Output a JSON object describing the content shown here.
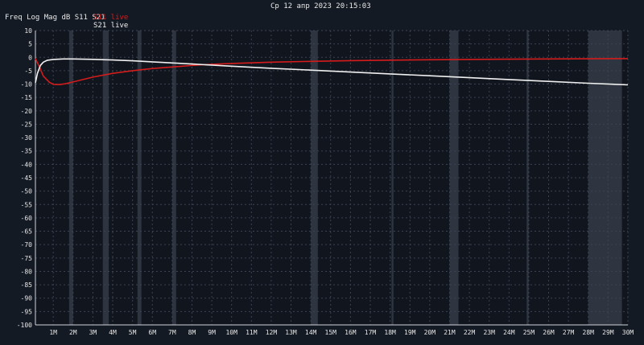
{
  "header": {
    "timestamp": "Ср 12 апр 2023 20:15:03",
    "trace_info": "Freq Log Mag dB S11 S21",
    "legend_s11": "S11 live",
    "legend_s21": "S21 live"
  },
  "colors": {
    "background": "#141a24",
    "plot_background": "#11151d",
    "grid": "#3b4252",
    "band": "#2f3540",
    "s11": "#d41c1c",
    "s21": "#f0f0f0"
  },
  "chart_data": {
    "type": "line",
    "title": "Freq Log Mag dB S11 S21",
    "xlabel": "",
    "ylabel": "",
    "xlim": [
      0.1,
      30
    ],
    "ylim": [
      -100,
      10
    ],
    "x_tick_values": [
      1,
      2,
      3,
      4,
      5,
      6,
      7,
      8,
      9,
      10,
      11,
      12,
      13,
      14,
      15,
      16,
      17,
      18,
      19,
      20,
      21,
      22,
      23,
      24,
      25,
      26,
      27,
      28,
      29,
      30
    ],
    "x_tick_labels": [
      "1M",
      "2M",
      "3M",
      "4M",
      "5M",
      "6M",
      "7M",
      "8M",
      "9M",
      "10M",
      "11M",
      "12M",
      "13M",
      "14M",
      "15M",
      "16M",
      "17M",
      "18M",
      "19M",
      "20M",
      "21M",
      "22M",
      "23M",
      "24M",
      "25M",
      "26M",
      "27M",
      "28M",
      "29M",
      "30M"
    ],
    "y_tick_values": [
      10,
      5,
      0,
      -5,
      -10,
      -15,
      -20,
      -25,
      -30,
      -35,
      -40,
      -45,
      -50,
      -55,
      -60,
      -65,
      -70,
      -75,
      -80,
      -85,
      -90,
      -95,
      -100
    ],
    "y_tick_labels": [
      "10",
      "5",
      "0",
      "-5",
      "-10",
      "-15",
      "-20",
      "-25",
      "-30",
      "-35",
      "-40",
      "-45",
      "-50",
      "-55",
      "-60",
      "-65",
      "-70",
      "-75",
      "-80",
      "-85",
      "-90",
      "-95",
      "-100"
    ],
    "grid": true,
    "shaded_bands_mhz": [
      [
        1.8,
        2.0
      ],
      [
        3.5,
        3.8
      ],
      [
        5.25,
        5.45
      ],
      [
        7.0,
        7.2
      ],
      [
        14.0,
        14.35
      ],
      [
        18.07,
        18.17
      ],
      [
        21.0,
        21.45
      ],
      [
        24.89,
        24.99
      ],
      [
        28.0,
        29.7
      ]
    ],
    "series": [
      {
        "name": "S11 live",
        "color": "#d41c1c",
        "x": [
          0.1,
          0.3,
          0.5,
          0.8,
          1.0,
          1.3,
          1.6,
          2.0,
          2.5,
          3.0,
          4.0,
          5.0,
          6.0,
          7.0,
          8.0,
          9.0,
          10.0,
          12.0,
          14.0,
          16.0,
          18.0,
          20.0,
          22.0,
          24.0,
          26.0,
          28.0,
          30.0
        ],
        "y": [
          -0.5,
          -3.5,
          -7.0,
          -9.3,
          -10.1,
          -10.2,
          -9.9,
          -9.2,
          -8.3,
          -7.4,
          -6.0,
          -5.0,
          -4.2,
          -3.6,
          -3.0,
          -2.6,
          -2.3,
          -1.8,
          -1.5,
          -1.25,
          -1.05,
          -0.9,
          -0.8,
          -0.7,
          -0.6,
          -0.55,
          -0.5
        ]
      },
      {
        "name": "S21 live",
        "color": "#f0f0f0",
        "x": [
          0.1,
          0.2,
          0.35,
          0.5,
          0.7,
          1.0,
          1.5,
          2.0,
          3.0,
          4.0,
          5.0,
          6.0,
          8.0,
          10.0,
          12.0,
          14.0,
          16.0,
          18.0,
          20.0,
          22.0,
          24.0,
          26.0,
          28.0,
          30.0
        ],
        "y": [
          -9.5,
          -6.0,
          -3.0,
          -1.8,
          -1.1,
          -0.8,
          -0.6,
          -0.6,
          -0.75,
          -1.0,
          -1.3,
          -1.7,
          -2.5,
          -3.3,
          -4.1,
          -4.8,
          -5.5,
          -6.2,
          -6.9,
          -7.6,
          -8.3,
          -9.0,
          -9.7,
          -10.3
        ]
      }
    ]
  }
}
